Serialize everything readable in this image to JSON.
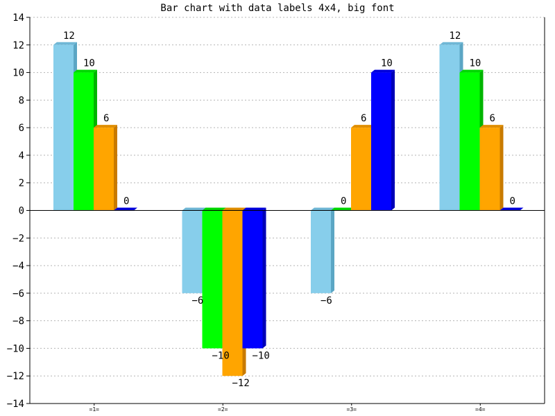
{
  "chart_data": {
    "type": "bar",
    "title": "Bar chart with data labels 4x4, big font",
    "xlabel": "",
    "ylabel": "",
    "categories": [
      "=1=",
      "=2=",
      "=3=",
      "=4="
    ],
    "series": [
      {
        "values": [
          12,
          -6,
          -6,
          12
        ],
        "color": "#87ceeb",
        "side": "#5ba6c4",
        "top": "#6fb7d6"
      },
      {
        "values": [
          10,
          -10,
          0,
          10
        ],
        "color": "#00ff00",
        "side": "#00b400",
        "top": "#00d800"
      },
      {
        "values": [
          6,
          -12,
          6,
          6
        ],
        "color": "#ffa500",
        "side": "#c87a00",
        "top": "#e08e00"
      },
      {
        "values": [
          0,
          -10,
          10,
          0
        ],
        "color": "#0000ff",
        "side": "#0000b8",
        "top": "#0000dc"
      }
    ],
    "ylim": [
      -14,
      14
    ],
    "yticks": [
      "14",
      "12",
      "10",
      "8",
      "6",
      "4",
      "2",
      "0",
      "-2",
      "-4",
      "-6",
      "-8",
      "-10",
      "-12",
      "-14"
    ],
    "grid": true,
    "data_labels": true
  }
}
